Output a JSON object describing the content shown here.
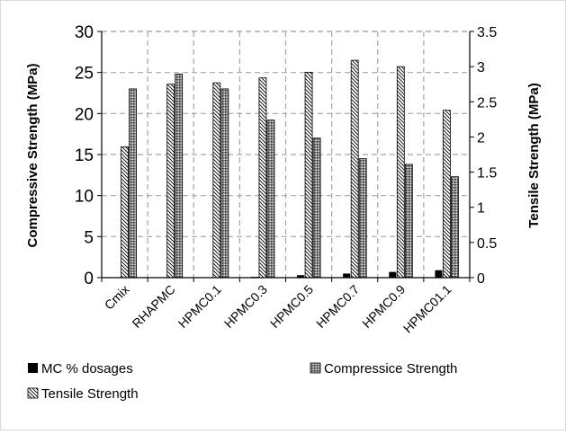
{
  "chart_data": {
    "type": "bar",
    "title": "",
    "categories": [
      "Cmix",
      "RHAPMC",
      "HPMC0.1",
      "HPMC0.3",
      "HPMC0.5",
      "HPMC0.7",
      "HPMC0.9",
      "HPMC01.1"
    ],
    "xlabel": "",
    "y_left": {
      "label": "Compressive Strength (MPa)",
      "min": 0,
      "max": 30,
      "ticks": [
        0,
        5,
        10,
        15,
        20,
        25,
        30
      ]
    },
    "y_right": {
      "label": "Tensile Strength (MPa)",
      "min": 0,
      "max": 3.5,
      "ticks": [
        "0",
        "0.5",
        "1",
        "1.5",
        "2",
        "2.5",
        "3",
        "3.5"
      ]
    },
    "series": [
      {
        "name": "MC % dosages",
        "axis": "left",
        "pattern": "solid-black",
        "values": [
          0,
          0,
          0,
          0.1,
          0.3,
          0.5,
          0.7,
          0.9
        ]
      },
      {
        "name": "Tensile Strength",
        "axis": "right",
        "pattern": "diagonal-hatch",
        "values": [
          1.86,
          2.75,
          2.77,
          2.84,
          2.92,
          3.09,
          3.0,
          2.38
        ]
      },
      {
        "name": "Compressice Strength",
        "axis": "left",
        "pattern": "crosshatch",
        "values": [
          23.0,
          24.8,
          23.0,
          19.2,
          17.0,
          14.5,
          13.8,
          12.3
        ]
      }
    ],
    "legend_order": [
      "MC % dosages",
      "Compressice Strength",
      "Tensile Strength"
    ],
    "legend_position": "bottom",
    "grid": "dashed",
    "colors": {
      "axis": "#000000",
      "grid": "#a6a6a6",
      "solid": "#000000",
      "hatch_bg": "#ffffff",
      "cross_bg": "#7f7f7f"
    }
  }
}
